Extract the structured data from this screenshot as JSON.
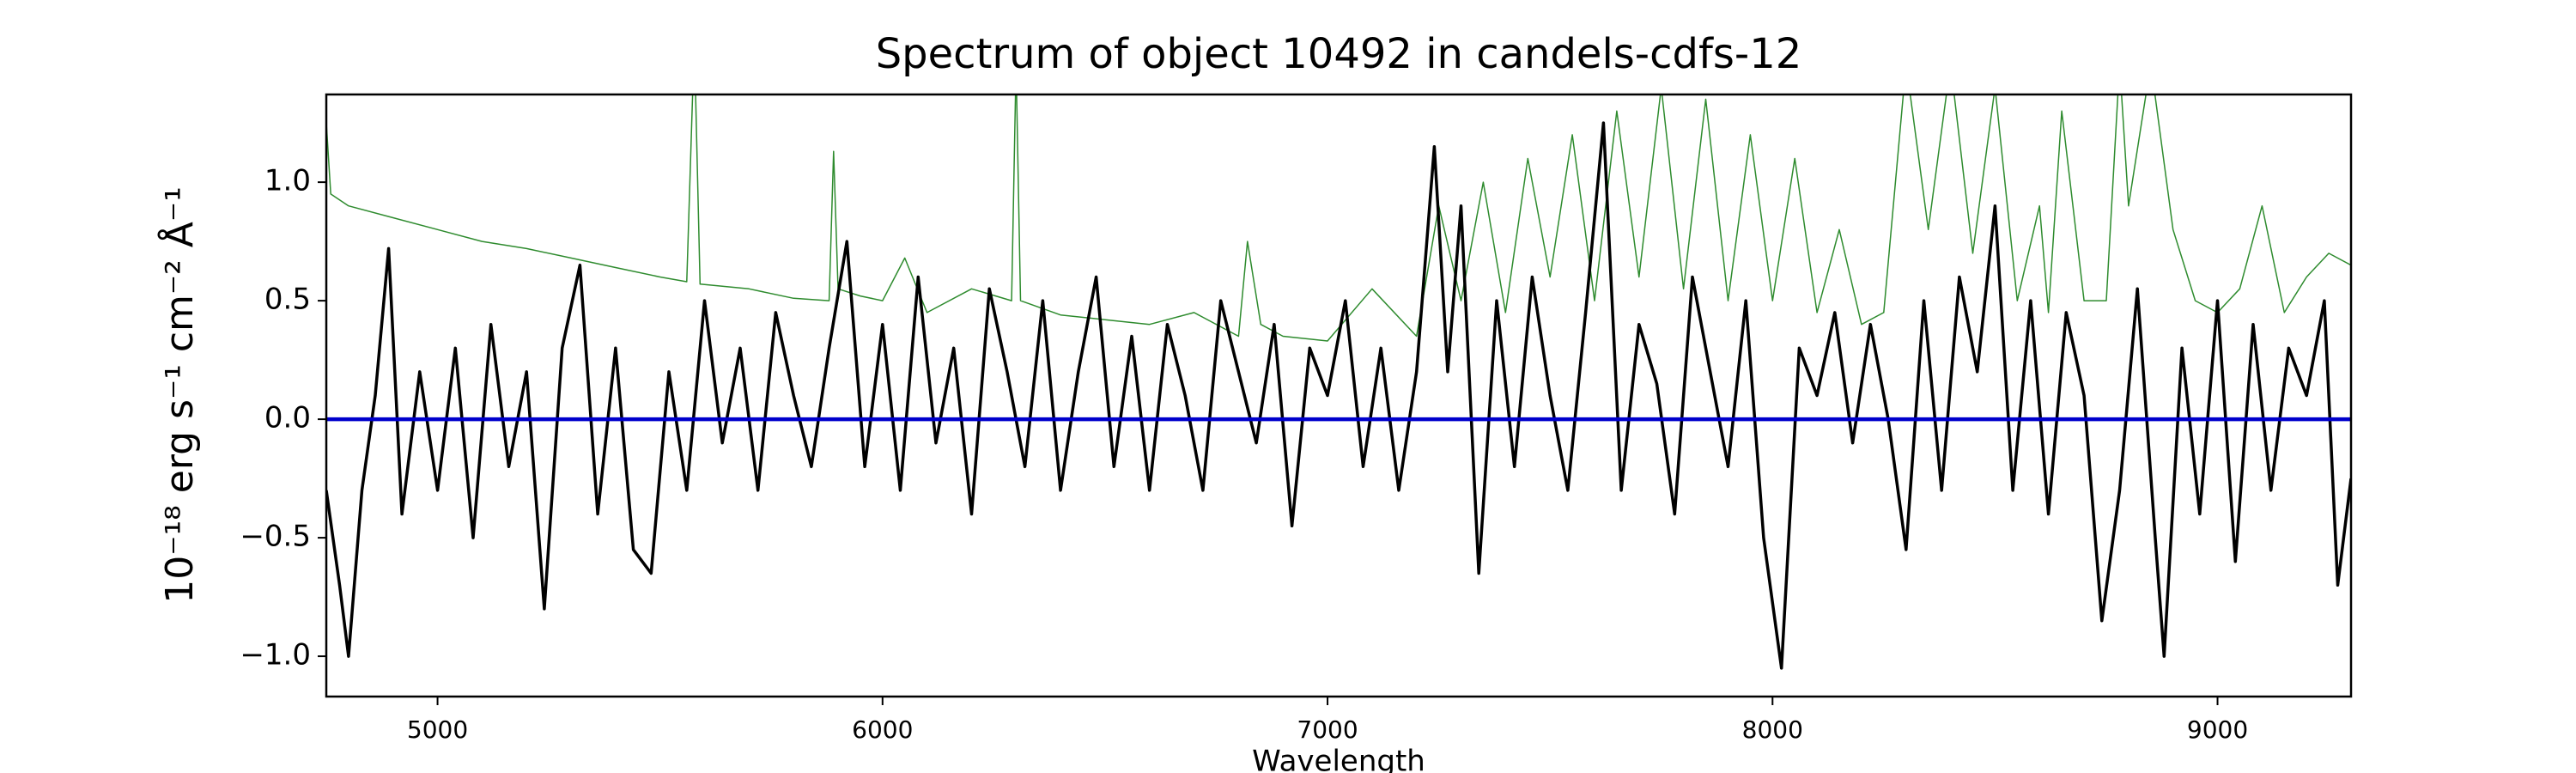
{
  "chart_data": {
    "type": "line",
    "title": "Spectrum of object 10492 in candels-cdfs-12",
    "x_label": "Wavelength",
    "y_label": "10⁻¹⁸ erg s⁻¹ cm⁻² Å⁻¹",
    "xlim": [
      4750,
      9300
    ],
    "ylim": [
      -1.17,
      1.37
    ],
    "xticks": [
      5000,
      6000,
      7000,
      8000,
      9000
    ],
    "yticks": [
      {
        "value": -1.0,
        "label": "−1.0"
      },
      {
        "value": -0.5,
        "label": "−0.5"
      },
      {
        "value": 0.0,
        "label": "0.0"
      },
      {
        "value": 0.5,
        "label": "0.5"
      },
      {
        "value": 1.0,
        "label": "1.0"
      }
    ],
    "series": [
      {
        "color": "#2e8b2e",
        "width": 1.5,
        "x": [
          4750,
          4760,
          4800,
          4900,
          5000,
          5100,
          5200,
          5300,
          5400,
          5500,
          5560,
          5577,
          5590,
          5700,
          5800,
          5880,
          5890,
          5900,
          5950,
          6000,
          6050,
          6100,
          6200,
          6290,
          6300,
          6310,
          6400,
          6500,
          6600,
          6700,
          6800,
          6820,
          6850,
          6900,
          7000,
          7100,
          7200,
          7250,
          7300,
          7350,
          7400,
          7450,
          7500,
          7550,
          7600,
          7650,
          7700,
          7750,
          7800,
          7850,
          7900,
          7950,
          8000,
          8050,
          8100,
          8150,
          8200,
          8250,
          8300,
          8350,
          8400,
          8450,
          8500,
          8550,
          8600,
          8620,
          8650,
          8700,
          8750,
          8780,
          8800,
          8850,
          8900,
          8950,
          9000,
          9050,
          9100,
          9150,
          9200,
          9250,
          9300
        ],
        "values": [
          1.25,
          0.95,
          0.9,
          0.85,
          0.8,
          0.75,
          0.72,
          0.68,
          0.64,
          0.6,
          0.58,
          1.6,
          0.57,
          0.55,
          0.51,
          0.5,
          1.13,
          0.55,
          0.52,
          0.5,
          0.68,
          0.45,
          0.55,
          0.5,
          1.5,
          0.5,
          0.44,
          0.42,
          0.4,
          0.45,
          0.35,
          0.75,
          0.4,
          0.35,
          0.33,
          0.55,
          0.35,
          0.9,
          0.5,
          1.0,
          0.45,
          1.1,
          0.6,
          1.2,
          0.5,
          1.3,
          0.6,
          1.4,
          0.55,
          1.35,
          0.5,
          1.2,
          0.5,
          1.1,
          0.45,
          0.8,
          0.4,
          0.45,
          1.5,
          0.8,
          1.5,
          0.7,
          1.4,
          0.5,
          0.9,
          0.45,
          1.3,
          0.5,
          0.5,
          1.5,
          0.9,
          1.5,
          0.8,
          0.5,
          0.45,
          0.55,
          0.9,
          0.45,
          0.6,
          0.7,
          0.65
        ]
      },
      {
        "color": "#000000",
        "width": 3.5,
        "x": [
          4750,
          4780,
          4800,
          4830,
          4860,
          4890,
          4920,
          4960,
          5000,
          5040,
          5080,
          5120,
          5160,
          5200,
          5240,
          5280,
          5320,
          5360,
          5400,
          5440,
          5480,
          5520,
          5560,
          5600,
          5640,
          5680,
          5720,
          5760,
          5800,
          5840,
          5880,
          5920,
          5960,
          6000,
          6040,
          6080,
          6120,
          6160,
          6200,
          6240,
          6280,
          6320,
          6360,
          6400,
          6440,
          6480,
          6520,
          6560,
          6600,
          6640,
          6680,
          6720,
          6760,
          6800,
          6840,
          6880,
          6920,
          6960,
          7000,
          7040,
          7080,
          7120,
          7160,
          7200,
          7240,
          7270,
          7300,
          7340,
          7380,
          7420,
          7460,
          7500,
          7540,
          7580,
          7620,
          7660,
          7700,
          7740,
          7780,
          7820,
          7860,
          7900,
          7940,
          7980,
          8020,
          8060,
          8100,
          8140,
          8180,
          8220,
          8260,
          8300,
          8340,
          8380,
          8420,
          8460,
          8500,
          8540,
          8580,
          8620,
          8660,
          8700,
          8740,
          8780,
          8820,
          8860,
          8880,
          8920,
          8960,
          9000,
          9040,
          9080,
          9120,
          9160,
          9200,
          9240,
          9270,
          9300
        ],
        "values": [
          -0.3,
          -0.7,
          -1.0,
          -0.3,
          0.1,
          0.72,
          -0.4,
          0.2,
          -0.3,
          0.3,
          -0.5,
          0.4,
          -0.2,
          0.2,
          -0.8,
          0.3,
          0.65,
          -0.4,
          0.3,
          -0.55,
          -0.65,
          0.2,
          -0.3,
          0.5,
          -0.1,
          0.3,
          -0.3,
          0.45,
          0.1,
          -0.2,
          0.3,
          0.75,
          -0.2,
          0.4,
          -0.3,
          0.6,
          -0.1,
          0.3,
          -0.4,
          0.55,
          0.2,
          -0.2,
          0.5,
          -0.3,
          0.2,
          0.6,
          -0.2,
          0.35,
          -0.3,
          0.4,
          0.1,
          -0.3,
          0.5,
          0.2,
          -0.1,
          0.4,
          -0.45,
          0.3,
          0.1,
          0.5,
          -0.2,
          0.3,
          -0.3,
          0.2,
          1.15,
          0.2,
          0.9,
          -0.65,
          0.5,
          -0.2,
          0.6,
          0.1,
          -0.3,
          0.45,
          1.25,
          -0.3,
          0.4,
          0.15,
          -0.4,
          0.6,
          0.2,
          -0.2,
          0.5,
          -0.5,
          -1.05,
          0.3,
          0.1,
          0.45,
          -0.1,
          0.4,
          0.0,
          -0.55,
          0.5,
          -0.3,
          0.6,
          0.2,
          0.9,
          -0.3,
          0.5,
          -0.4,
          0.45,
          0.1,
          -0.85,
          -0.3,
          0.55,
          -0.5,
          -1.0,
          0.3,
          -0.4,
          0.5,
          -0.6,
          0.4,
          -0.3,
          0.3,
          0.1,
          0.5,
          -0.7,
          -0.25
        ]
      },
      {
        "color": "#0000cc",
        "width": 4.5,
        "x": [
          4750,
          9300
        ],
        "values": [
          0,
          0
        ]
      }
    ]
  }
}
